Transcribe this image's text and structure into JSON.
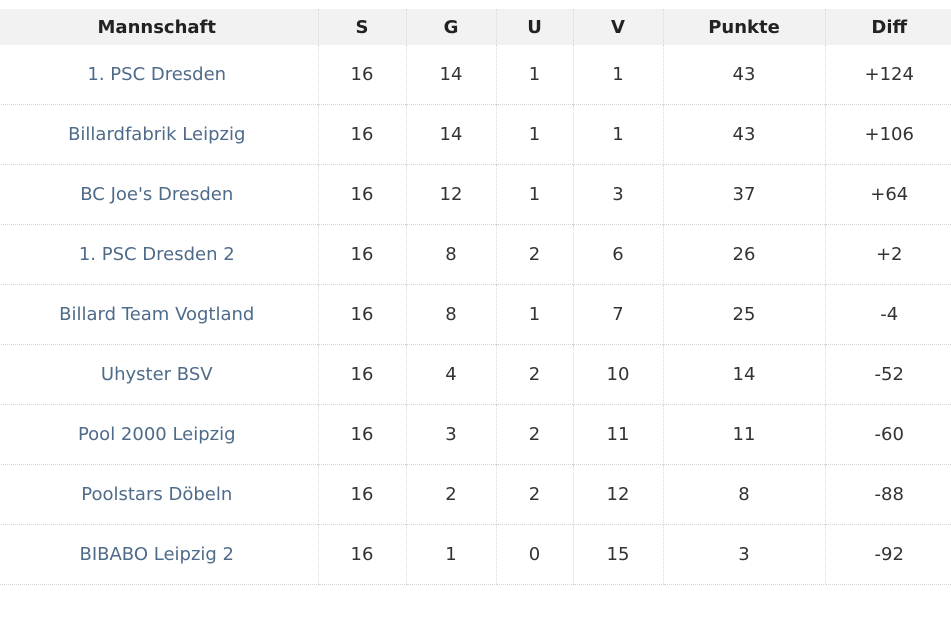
{
  "table": {
    "headers": {
      "team": "Mannschaft",
      "s": "S",
      "g": "G",
      "u": "U",
      "v": "V",
      "punkte": "Punkte",
      "diff": "Diff"
    },
    "rows": [
      {
        "team": "1. PSC Dresden",
        "s": "16",
        "g": "14",
        "u": "1",
        "v": "1",
        "punkte": "43",
        "diff": "+124"
      },
      {
        "team": "Billardfabrik Leipzig",
        "s": "16",
        "g": "14",
        "u": "1",
        "v": "1",
        "punkte": "43",
        "diff": "+106"
      },
      {
        "team": "BC Joe's Dresden",
        "s": "16",
        "g": "12",
        "u": "1",
        "v": "3",
        "punkte": "37",
        "diff": "+64"
      },
      {
        "team": "1. PSC Dresden 2",
        "s": "16",
        "g": "8",
        "u": "2",
        "v": "6",
        "punkte": "26",
        "diff": "+2"
      },
      {
        "team": "Billard Team Vogtland",
        "s": "16",
        "g": "8",
        "u": "1",
        "v": "7",
        "punkte": "25",
        "diff": "-4"
      },
      {
        "team": "Uhyster BSV",
        "s": "16",
        "g": "4",
        "u": "2",
        "v": "10",
        "punkte": "14",
        "diff": "-52"
      },
      {
        "team": "Pool 2000 Leipzig",
        "s": "16",
        "g": "3",
        "u": "2",
        "v": "11",
        "punkte": "11",
        "diff": "-60"
      },
      {
        "team": "Poolstars Döbeln",
        "s": "16",
        "g": "2",
        "u": "2",
        "v": "12",
        "punkte": "8",
        "diff": "-88"
      },
      {
        "team": "BIBABO Leipzig 2",
        "s": "16",
        "g": "1",
        "u": "0",
        "v": "15",
        "punkte": "3",
        "diff": "-92"
      }
    ]
  },
  "colors": {
    "team_link": "#4f6b8a",
    "header_bg": "#f2f2f2",
    "text": "#333333"
  }
}
